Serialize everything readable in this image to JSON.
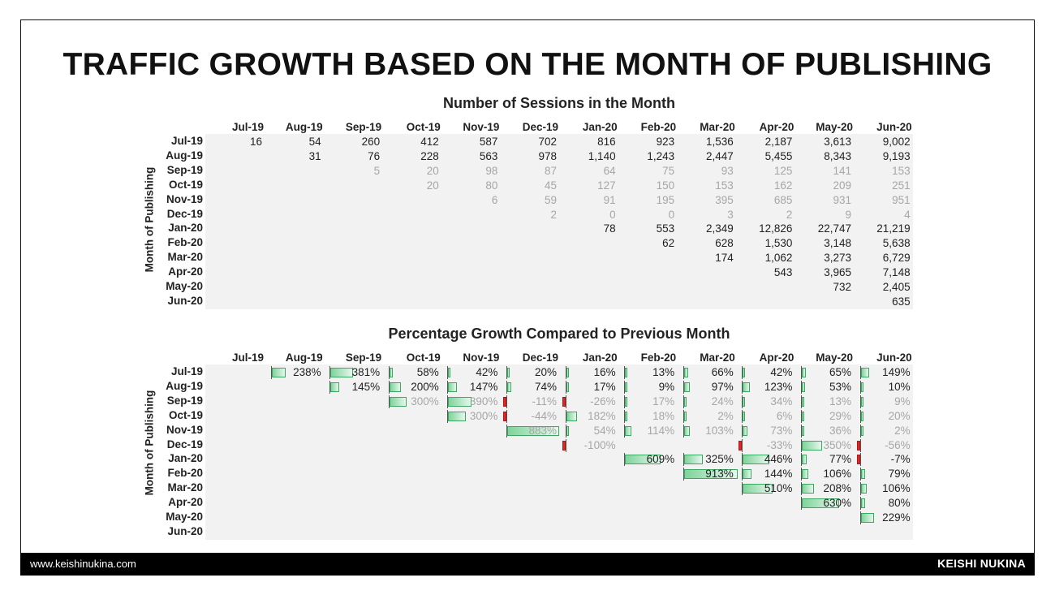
{
  "title": "TRAFFIC GROWTH BASED ON THE MONTH OF PUBLISHING",
  "footer": {
    "website": "www.keishinukina.com",
    "author": "KEISHI NUKINA"
  },
  "colors": {
    "positive_bar": "#7fd39b",
    "negative_bar": "#e02828",
    "panel_bg": "#f2f2f2",
    "faded_text": "#a6a6a6"
  },
  "chart_data": [
    {
      "type": "table",
      "title": "Number of Sessions in the Month",
      "ylabel": "Month of Publishing",
      "columns": [
        "Jul-19",
        "Aug-19",
        "Sep-19",
        "Oct-19",
        "Nov-19",
        "Dec-19",
        "Jan-20",
        "Feb-20",
        "Mar-20",
        "Apr-20",
        "May-20",
        "Jun-20"
      ],
      "rows": [
        "Jul-19",
        "Aug-19",
        "Sep-19",
        "Oct-19",
        "Nov-19",
        "Dec-19",
        "Jan-20",
        "Feb-20",
        "Mar-20",
        "Apr-20",
        "May-20",
        "Jun-20"
      ],
      "faded_rows": [
        2,
        3,
        4,
        5
      ],
      "cells": [
        [
          "16",
          "54",
          "260",
          "412",
          "587",
          "702",
          "816",
          "923",
          "1,536",
          "2,187",
          "3,613",
          "9,002"
        ],
        [
          "",
          "31",
          "76",
          "228",
          "563",
          "978",
          "1,140",
          "1,243",
          "2,447",
          "5,455",
          "8,343",
          "9,193"
        ],
        [
          "",
          "",
          "5",
          "20",
          "98",
          "87",
          "64",
          "75",
          "93",
          "125",
          "141",
          "153"
        ],
        [
          "",
          "",
          "",
          "20",
          "80",
          "45",
          "127",
          "150",
          "153",
          "162",
          "209",
          "251"
        ],
        [
          "",
          "",
          "",
          "",
          "6",
          "59",
          "91",
          "195",
          "395",
          "685",
          "931",
          "951"
        ],
        [
          "",
          "",
          "",
          "",
          "",
          "2",
          "0",
          "0",
          "3",
          "2",
          "9",
          "4"
        ],
        [
          "",
          "",
          "",
          "",
          "",
          "",
          "78",
          "553",
          "2,349",
          "12,826",
          "22,747",
          "21,219"
        ],
        [
          "",
          "",
          "",
          "",
          "",
          "",
          "",
          "62",
          "628",
          "1,530",
          "3,148",
          "5,638"
        ],
        [
          "",
          "",
          "",
          "",
          "",
          "",
          "",
          "",
          "174",
          "1,062",
          "3,273",
          "6,729"
        ],
        [
          "",
          "",
          "",
          "",
          "",
          "",
          "",
          "",
          "",
          "543",
          "3,965",
          "7,148"
        ],
        [
          "",
          "",
          "",
          "",
          "",
          "",
          "",
          "",
          "",
          "",
          "732",
          "2,405"
        ],
        [
          "",
          "",
          "",
          "",
          "",
          "",
          "",
          "",
          "",
          "",
          "",
          "635"
        ]
      ]
    },
    {
      "type": "table",
      "title": "Percentage Growth Compared to Previous Month",
      "ylabel": "Month of Publishing",
      "columns": [
        "Jul-19",
        "Aug-19",
        "Sep-19",
        "Oct-19",
        "Nov-19",
        "Dec-19",
        "Jan-20",
        "Feb-20",
        "Mar-20",
        "Apr-20",
        "May-20",
        "Jun-20"
      ],
      "rows": [
        "Jul-19",
        "Aug-19",
        "Sep-19",
        "Oct-19",
        "Nov-19",
        "Dec-19",
        "Jan-20",
        "Feb-20",
        "Mar-20",
        "Apr-20",
        "May-20",
        "Jun-20"
      ],
      "faded_rows": [
        2,
        3,
        4,
        5
      ],
      "cells": [
        [
          "",
          "238%",
          "381%",
          "58%",
          "42%",
          "20%",
          "16%",
          "13%",
          "66%",
          "42%",
          "65%",
          "149%"
        ],
        [
          "",
          "",
          "145%",
          "200%",
          "147%",
          "74%",
          "17%",
          "9%",
          "97%",
          "123%",
          "53%",
          "10%"
        ],
        [
          "",
          "",
          "",
          "300%",
          "390%",
          "-11%",
          "-26%",
          "17%",
          "24%",
          "34%",
          "13%",
          "9%"
        ],
        [
          "",
          "",
          "",
          "",
          "300%",
          "-44%",
          "182%",
          "18%",
          "2%",
          "6%",
          "29%",
          "20%"
        ],
        [
          "",
          "",
          "",
          "",
          "",
          "883%",
          "54%",
          "114%",
          "103%",
          "73%",
          "36%",
          "2%"
        ],
        [
          "",
          "",
          "",
          "",
          "",
          "",
          "-100%",
          "",
          "",
          "-33%",
          "350%",
          "-56%"
        ],
        [
          "",
          "",
          "",
          "",
          "",
          "",
          "",
          "609%",
          "325%",
          "446%",
          "77%",
          "-7%"
        ],
        [
          "",
          "",
          "",
          "",
          "",
          "",
          "",
          "",
          "913%",
          "144%",
          "106%",
          "79%"
        ],
        [
          "",
          "",
          "",
          "",
          "",
          "",
          "",
          "",
          "",
          "510%",
          "208%",
          "106%"
        ],
        [
          "",
          "",
          "",
          "",
          "",
          "",
          "",
          "",
          "",
          "",
          "630%",
          "80%"
        ],
        [
          "",
          "",
          "",
          "",
          "",
          "",
          "",
          "",
          "",
          "",
          "",
          "229%"
        ],
        [
          "",
          "",
          "",
          "",
          "",
          "",
          "",
          "",
          "",
          "",
          "",
          ""
        ]
      ],
      "values": [
        [
          null,
          238,
          381,
          58,
          42,
          20,
          16,
          13,
          66,
          42,
          65,
          149
        ],
        [
          null,
          null,
          145,
          200,
          147,
          74,
          17,
          9,
          97,
          123,
          53,
          10
        ],
        [
          null,
          null,
          null,
          300,
          390,
          -11,
          -26,
          17,
          24,
          34,
          13,
          9
        ],
        [
          null,
          null,
          null,
          null,
          300,
          -44,
          182,
          18,
          2,
          6,
          29,
          20
        ],
        [
          null,
          null,
          null,
          null,
          null,
          883,
          54,
          114,
          103,
          73,
          36,
          2
        ],
        [
          null,
          null,
          null,
          null,
          null,
          null,
          -100,
          null,
          null,
          -33,
          350,
          -56
        ],
        [
          null,
          null,
          null,
          null,
          null,
          null,
          null,
          609,
          325,
          446,
          77,
          -7
        ],
        [
          null,
          null,
          null,
          null,
          null,
          null,
          null,
          null,
          913,
          144,
          106,
          79
        ],
        [
          null,
          null,
          null,
          null,
          null,
          null,
          null,
          null,
          null,
          510,
          208,
          106
        ],
        [
          null,
          null,
          null,
          null,
          null,
          null,
          null,
          null,
          null,
          null,
          630,
          80
        ],
        [
          null,
          null,
          null,
          null,
          null,
          null,
          null,
          null,
          null,
          null,
          null,
          229
        ],
        [
          null,
          null,
          null,
          null,
          null,
          null,
          null,
          null,
          null,
          null,
          null,
          null
        ]
      ]
    }
  ]
}
